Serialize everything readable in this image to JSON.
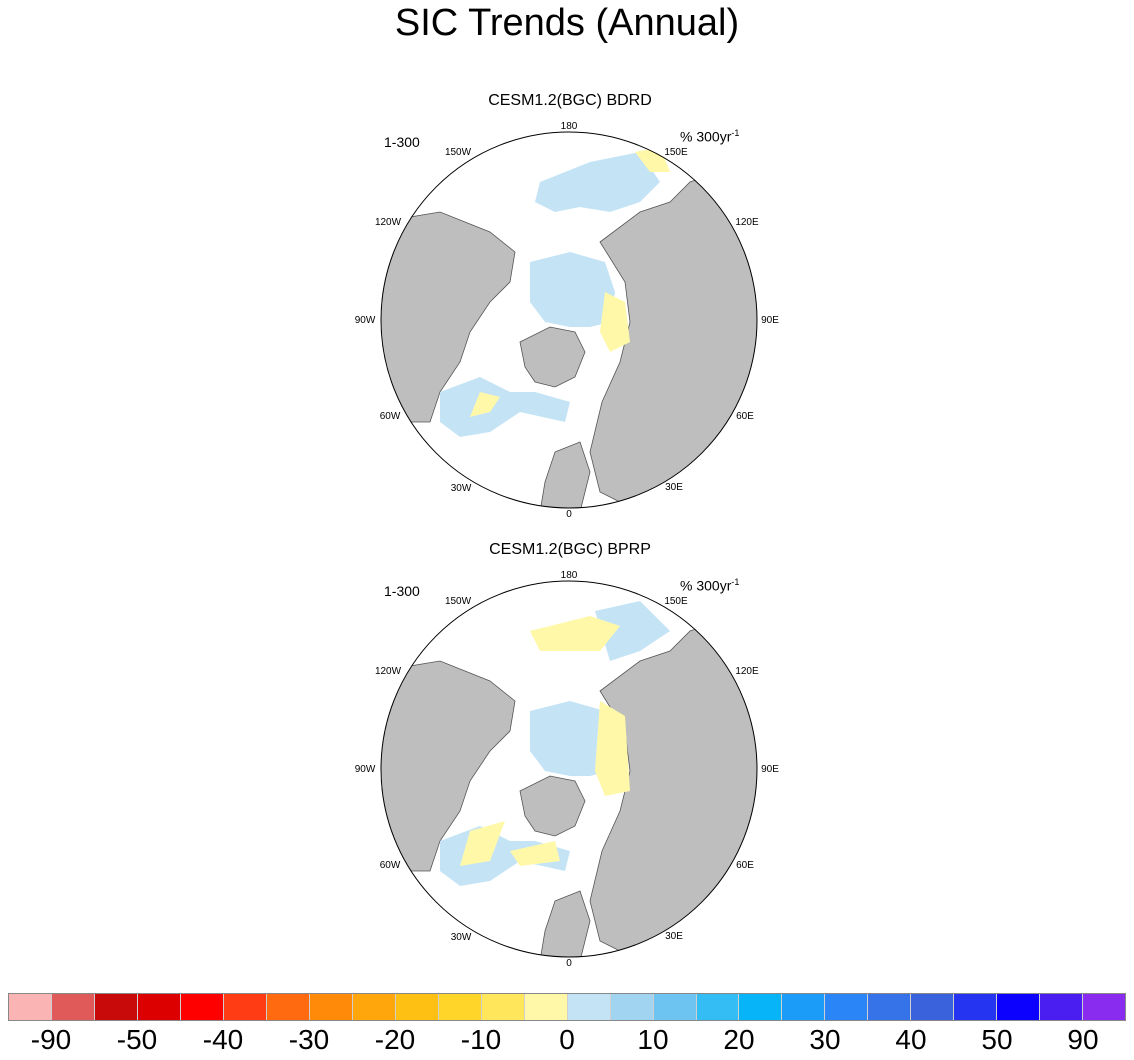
{
  "title": "SIC Trends (Annual)",
  "panels": [
    {
      "title": "CESM1.2(BGC) BDRD",
      "range": "1-300",
      "units": "% 300yr",
      "units_sup": "-1",
      "longitude_labels": [
        "180",
        "150E",
        "120E",
        "90E",
        "60E",
        "30E",
        "0",
        "30W",
        "60W",
        "90W",
        "120W",
        "150W"
      ]
    },
    {
      "title": "CESM1.2(BGC) BPRP",
      "range": "1-300",
      "units": "% 300yr",
      "units_sup": "-1",
      "longitude_labels": [
        "180",
        "150E",
        "120E",
        "90E",
        "60E",
        "30E",
        "0",
        "30W",
        "60W",
        "90W",
        "120W",
        "150W"
      ]
    }
  ],
  "colorbar": {
    "colors": [
      "#fbb4b4",
      "#e05a5a",
      "#c80a0a",
      "#dc0000",
      "#ff0000",
      "#ff3c14",
      "#ff6a10",
      "#ff8a0a",
      "#ffa60c",
      "#ffc014",
      "#ffd52a",
      "#ffe65a",
      "#fff8a8",
      "#c4e4f6",
      "#a0d4f0",
      "#6ec4f0",
      "#34bcf4",
      "#08b4f8",
      "#1a9cf8",
      "#2a86f6",
      "#3672e8",
      "#3a62dc",
      "#2434f0",
      "#0c00ff",
      "#4a1ef0",
      "#8a2cf0"
    ],
    "labels": [
      "-90",
      "-50",
      "-40",
      "-30",
      "-20",
      "-10",
      "0",
      "10",
      "20",
      "30",
      "40",
      "50",
      "90"
    ]
  },
  "map_colors": {
    "land": "#bebebe",
    "ice_decrease": "#fff8a8",
    "ice_increase": "#c4e4f6",
    "ocean": "#ffffff"
  }
}
